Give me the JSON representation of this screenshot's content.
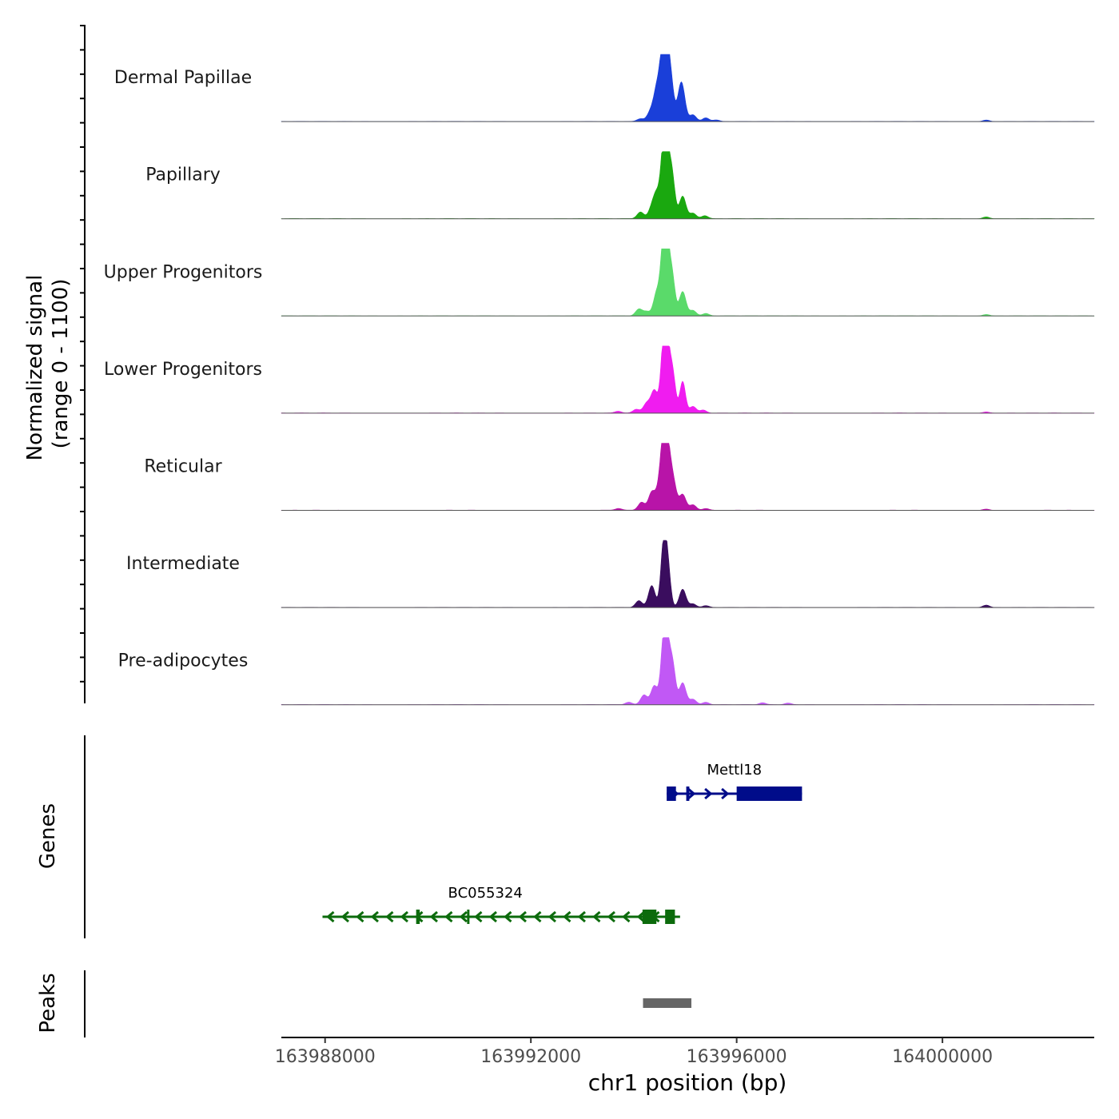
{
  "chart_data": {
    "type": "area",
    "chromosome": "chr1",
    "xlabel": "chr1 position (bp)",
    "x_range": [
      163987150,
      164002950
    ],
    "x_ticks": [
      163988000,
      163992000,
      163996000,
      164000000
    ],
    "x_tick_labels": [
      "163988000",
      "163992000",
      "163996000",
      "164000000"
    ],
    "coverage_panel": {
      "ylabel_line1": "Normalized signal",
      "ylabel_line2": "(range 0 - 1100)",
      "y_range": [
        0,
        1100
      ],
      "tracks": [
        {
          "name": "Dermal Papillae",
          "color": "#1a3fd9",
          "peaks": [
            {
              "pos": 163994130,
              "h": 45
            },
            {
              "pos": 163994320,
              "h": 140
            },
            {
              "pos": 163994440,
              "h": 370
            },
            {
              "pos": 163994500,
              "h": 310
            },
            {
              "pos": 163994580,
              "h": 1100
            },
            {
              "pos": 163994650,
              "h": 820
            },
            {
              "pos": 163994730,
              "h": 520
            },
            {
              "pos": 163994900,
              "h": 260
            },
            {
              "pos": 163994940,
              "h": 420
            },
            {
              "pos": 163995150,
              "h": 110
            },
            {
              "pos": 163995400,
              "h": 60
            },
            {
              "pos": 163995600,
              "h": 25
            },
            {
              "pos": 164000850,
              "h": 25
            }
          ]
        },
        {
          "name": "Papillary",
          "color": "#1aa80f",
          "peaks": [
            {
              "pos": 163994130,
              "h": 110
            },
            {
              "pos": 163994350,
              "h": 160
            },
            {
              "pos": 163994450,
              "h": 380
            },
            {
              "pos": 163994580,
              "h": 1100
            },
            {
              "pos": 163994660,
              "h": 760
            },
            {
              "pos": 163994750,
              "h": 620
            },
            {
              "pos": 163994950,
              "h": 370
            },
            {
              "pos": 163995150,
              "h": 90
            },
            {
              "pos": 163995380,
              "h": 50
            },
            {
              "pos": 164000850,
              "h": 30
            }
          ]
        },
        {
          "name": "Upper Progenitors",
          "color": "#5ada6a",
          "peaks": [
            {
              "pos": 163994100,
              "h": 110
            },
            {
              "pos": 163994250,
              "h": 70
            },
            {
              "pos": 163994450,
              "h": 390
            },
            {
              "pos": 163994580,
              "h": 1100
            },
            {
              "pos": 163994650,
              "h": 900
            },
            {
              "pos": 163994750,
              "h": 600
            },
            {
              "pos": 163994950,
              "h": 400
            },
            {
              "pos": 163995150,
              "h": 90
            },
            {
              "pos": 163995400,
              "h": 40
            },
            {
              "pos": 164000850,
              "h": 25
            }
          ]
        },
        {
          "name": "Lower Progenitors",
          "color": "#f01cf0",
          "peaks": [
            {
              "pos": 163994050,
              "h": 60
            },
            {
              "pos": 163994250,
              "h": 160
            },
            {
              "pos": 163994400,
              "h": 370
            },
            {
              "pos": 163994580,
              "h": 1100
            },
            {
              "pos": 163994660,
              "h": 840
            },
            {
              "pos": 163994760,
              "h": 600
            },
            {
              "pos": 163994950,
              "h": 520
            },
            {
              "pos": 163995150,
              "h": 110
            },
            {
              "pos": 163995350,
              "h": 50
            },
            {
              "pos": 163993700,
              "h": 30
            },
            {
              "pos": 164000850,
              "h": 20
            }
          ]
        },
        {
          "name": "Reticular",
          "color": "#b814a8",
          "peaks": [
            {
              "pos": 163993700,
              "h": 30
            },
            {
              "pos": 163994150,
              "h": 130
            },
            {
              "pos": 163994350,
              "h": 290
            },
            {
              "pos": 163994500,
              "h": 350
            },
            {
              "pos": 163994580,
              "h": 1000
            },
            {
              "pos": 163994660,
              "h": 780
            },
            {
              "pos": 163994760,
              "h": 500
            },
            {
              "pos": 163994950,
              "h": 260
            },
            {
              "pos": 163995150,
              "h": 90
            },
            {
              "pos": 163995400,
              "h": 30
            },
            {
              "pos": 164000850,
              "h": 20
            }
          ]
        },
        {
          "name": "Intermediate",
          "color": "#3a0d5e",
          "peaks": [
            {
              "pos": 163994100,
              "h": 110
            },
            {
              "pos": 163994350,
              "h": 360
            },
            {
              "pos": 163994580,
              "h": 1000
            },
            {
              "pos": 163994660,
              "h": 620
            },
            {
              "pos": 163994950,
              "h": 300
            },
            {
              "pos": 163995150,
              "h": 60
            },
            {
              "pos": 163995400,
              "h": 30
            },
            {
              "pos": 164000850,
              "h": 40
            }
          ]
        },
        {
          "name": "Pre-adipocytes",
          "color": "#c158f5",
          "peaks": [
            {
              "pos": 163993900,
              "h": 40
            },
            {
              "pos": 163994200,
              "h": 160
            },
            {
              "pos": 163994400,
              "h": 310
            },
            {
              "pos": 163994580,
              "h": 1000
            },
            {
              "pos": 163994660,
              "h": 780
            },
            {
              "pos": 163994760,
              "h": 600
            },
            {
              "pos": 163994950,
              "h": 360
            },
            {
              "pos": 163995150,
              "h": 90
            },
            {
              "pos": 163995400,
              "h": 40
            },
            {
              "pos": 163996500,
              "h": 30
            },
            {
              "pos": 163997000,
              "h": 25
            }
          ]
        }
      ]
    },
    "genes_panel": {
      "ylabel": "Genes",
      "genes": [
        {
          "name": "Mettl18",
          "strand": "+",
          "color": "#000c8a",
          "start": 163994640,
          "end": 163997270,
          "exons": [
            {
              "start": 163994640,
              "end": 163994820
            },
            {
              "start": 163995020,
              "end": 163995080
            },
            {
              "start": 163996000,
              "end": 163997270
            }
          ]
        },
        {
          "name": "BC055324",
          "strand": "-",
          "color": "#0c6b0c",
          "start": 163987950,
          "end": 163994900,
          "exons": [
            {
              "start": 163989770,
              "end": 163989840
            },
            {
              "start": 163990760,
              "end": 163990790
            },
            {
              "start": 163994170,
              "end": 163994440
            },
            {
              "start": 163994610,
              "end": 163994800
            }
          ]
        }
      ]
    },
    "peaks_panel": {
      "ylabel": "Peaks",
      "color": "#666666",
      "regions": [
        {
          "start": 163994180,
          "end": 163995120
        }
      ]
    }
  }
}
